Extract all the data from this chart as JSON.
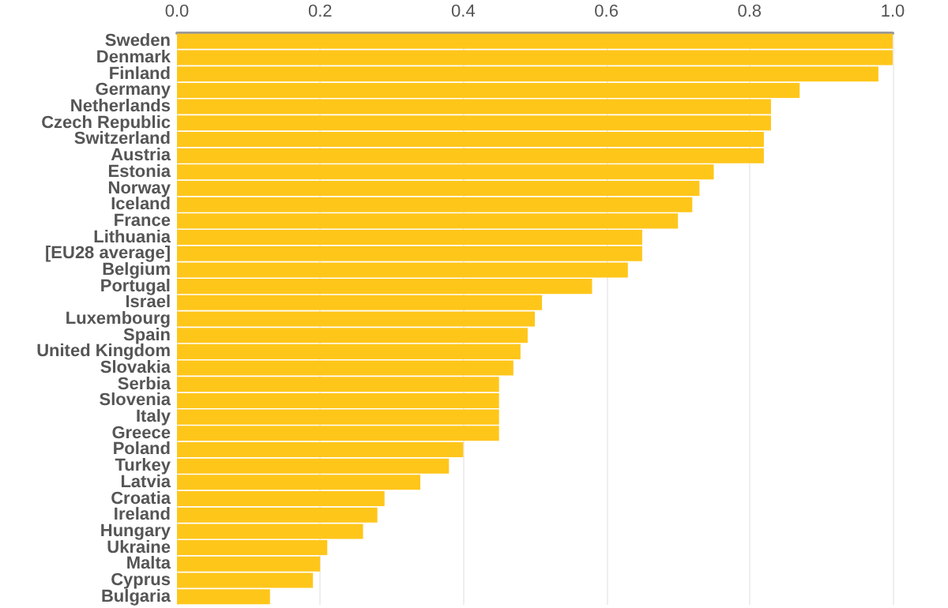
{
  "chart_data": {
    "type": "bar",
    "orientation": "horizontal",
    "categories": [
      "Sweden",
      "Denmark",
      "Finland",
      "Germany",
      "Netherlands",
      "Czech Republic",
      "Switzerland",
      "Austria",
      "Estonia",
      "Norway",
      "Iceland",
      "France",
      "Lithuania",
      "[EU28 average]",
      "Belgium",
      "Portugal",
      "Israel",
      "Luxembourg",
      "Spain",
      "United Kingdom",
      "Slovakia",
      "Serbia",
      "Slovenia",
      "Italy",
      "Greece",
      "Poland",
      "Turkey",
      "Latvia",
      "Croatia",
      "Ireland",
      "Hungary",
      "Ukraine",
      "Malta",
      "Cyprus",
      "Bulgaria"
    ],
    "values": [
      1.0,
      1.0,
      0.98,
      0.87,
      0.83,
      0.83,
      0.82,
      0.82,
      0.75,
      0.73,
      0.72,
      0.7,
      0.65,
      0.65,
      0.63,
      0.58,
      0.51,
      0.5,
      0.49,
      0.48,
      0.47,
      0.45,
      0.45,
      0.45,
      0.45,
      0.4,
      0.38,
      0.34,
      0.29,
      0.28,
      0.26,
      0.21,
      0.2,
      0.19,
      0.13
    ],
    "color": "#ffc61a",
    "xlim": [
      0,
      1
    ],
    "xticks": [
      {
        "value": 0,
        "label": "0.0"
      },
      {
        "value": 0.2,
        "label": "0.2"
      },
      {
        "value": 0.4,
        "label": "0.4"
      },
      {
        "value": 0.6,
        "label": "0.6"
      },
      {
        "value": 0.8,
        "label": "0.8"
      },
      {
        "value": 1,
        "label": "1.0"
      }
    ],
    "grid": "x"
  }
}
